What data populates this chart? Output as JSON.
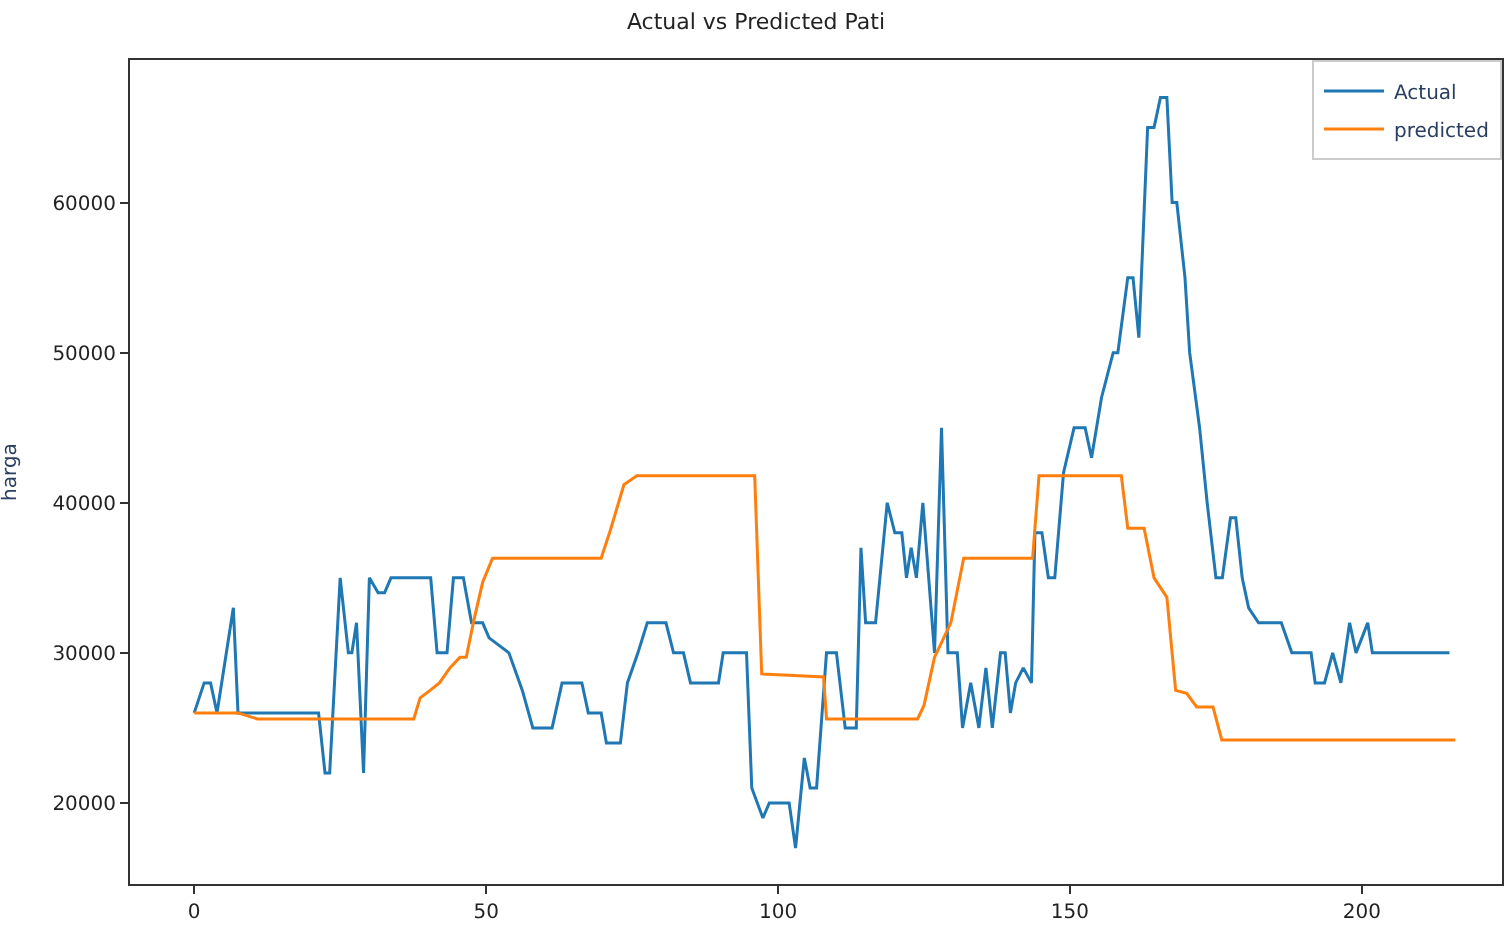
{
  "chart_data": {
    "type": "line",
    "title": "Actual vs Predicted Pati",
    "ylabel": "harga",
    "xlim": [
      -11,
      224
    ],
    "ylim": [
      14600,
      69500
    ],
    "xticks": [
      0,
      50,
      100,
      150,
      200
    ],
    "yticks": [
      20000,
      30000,
      40000,
      50000,
      60000
    ],
    "legend": "top right",
    "marker": "none",
    "line_style": "solid",
    "series": [
      {
        "name": "Actual",
        "color": "#1f77b4",
        "x": [
          0,
          1.7,
          2.8,
          3.9,
          6.7,
          7.5,
          21.3,
          22.4,
          23.2,
          25,
          26.4,
          27,
          27.8,
          29,
          30,
          31.5,
          32.6,
          33.7,
          40.5,
          41.6,
          43.3,
          44.4,
          46.1,
          47.5,
          49.4,
          50.5,
          53.9,
          56.2,
          58,
          61.3,
          63,
          66.4,
          67.5,
          69.7,
          70.6,
          73,
          74.2,
          76,
          77.6,
          80.8,
          82.1,
          83.8,
          85,
          89.8,
          90.6,
          94.6,
          95.5,
          97.4,
          98.5,
          101.9,
          103,
          104.5,
          105.5,
          106.6,
          108.3,
          110,
          111.5,
          113.4,
          114.2,
          115,
          116.7,
          118.7,
          120,
          121.2,
          122,
          122.8,
          123.7,
          124.8,
          126.8,
          128,
          129.1,
          130.7,
          131.6,
          133,
          134.4,
          135.6,
          136.7,
          138.1,
          138.9,
          139.8,
          140.7,
          142,
          143.4,
          144,
          145.2,
          146.3,
          147.4,
          148.9,
          150.7,
          152.6,
          153.7,
          155.4,
          157.4,
          158.2,
          159.9,
          160.8,
          161.8,
          163.3,
          164.4,
          165.5,
          166.6,
          167.5,
          168.3,
          169.7,
          170.5,
          172.2,
          173.5,
          175,
          176.1,
          177.5,
          178.4,
          179.5,
          180.6,
          182.3,
          186.2,
          188,
          191.3,
          192,
          193.6,
          195,
          196.4,
          197.9,
          199,
          201,
          201.8,
          215
        ],
        "values": [
          26000,
          28000,
          28000,
          26000,
          33000,
          26000,
          26000,
          22000,
          22000,
          35000,
          30000,
          30000,
          32000,
          22000,
          35000,
          34000,
          34000,
          35000,
          35000,
          30000,
          30000,
          35000,
          35000,
          32000,
          32000,
          31000,
          30000,
          27500,
          25000,
          25000,
          28000,
          28000,
          26000,
          26000,
          24000,
          24000,
          28000,
          30000,
          32000,
          32000,
          30000,
          30000,
          28000,
          28000,
          30000,
          30000,
          21000,
          19000,
          20000,
          20000,
          17000,
          23000,
          21000,
          21000,
          30000,
          30000,
          25000,
          25000,
          37000,
          32000,
          32000,
          40000,
          38000,
          38000,
          35000,
          37000,
          35000,
          40000,
          30000,
          45000,
          30000,
          30000,
          25000,
          28000,
          25000,
          29000,
          25000,
          30000,
          30000,
          26000,
          28000,
          29000,
          28000,
          38000,
          38000,
          35000,
          35000,
          42000,
          45000,
          45000,
          43000,
          47000,
          50000,
          50000,
          55000,
          55000,
          51000,
          65000,
          65000,
          67000,
          67000,
          60000,
          60000,
          55000,
          50000,
          45000,
          40000,
          35000,
          35000,
          39000,
          39000,
          35000,
          33000,
          32000,
          32000,
          30000,
          30000,
          28000,
          28000,
          30000,
          28000,
          32000,
          30000,
          32000,
          30000,
          30000
        ]
      },
      {
        "name": "predicted",
        "color": "#ff7f0e",
        "x": [
          0,
          7.5,
          10.8,
          37.6,
          38.7,
          40.4,
          42,
          43.8,
          45.5,
          46.6,
          47.8,
          49.4,
          51.1,
          69.7,
          71.3,
          73.6,
          75.8,
          96,
          97.2,
          102.7,
          107.8,
          108.3,
          123.9,
          125,
          126.8,
          129.6,
          131.8,
          143.6,
          144.7,
          158.8,
          159.9,
          162.7,
          164.4,
          166.6,
          168.1,
          170,
          171.7,
          174.5,
          176,
          202,
          216
        ],
        "values": [
          26000,
          26000,
          25600,
          25600,
          27000,
          27500,
          28000,
          29000,
          29700,
          29700,
          32000,
          34700,
          36300,
          36300,
          38200,
          41200,
          41800,
          41800,
          28600,
          28500,
          28400,
          25600,
          25600,
          26500,
          29700,
          32000,
          36300,
          36300,
          41800,
          41800,
          38300,
          38300,
          35000,
          33700,
          27500,
          27300,
          26400,
          26400,
          24200,
          24200,
          24200
        ]
      }
    ]
  }
}
